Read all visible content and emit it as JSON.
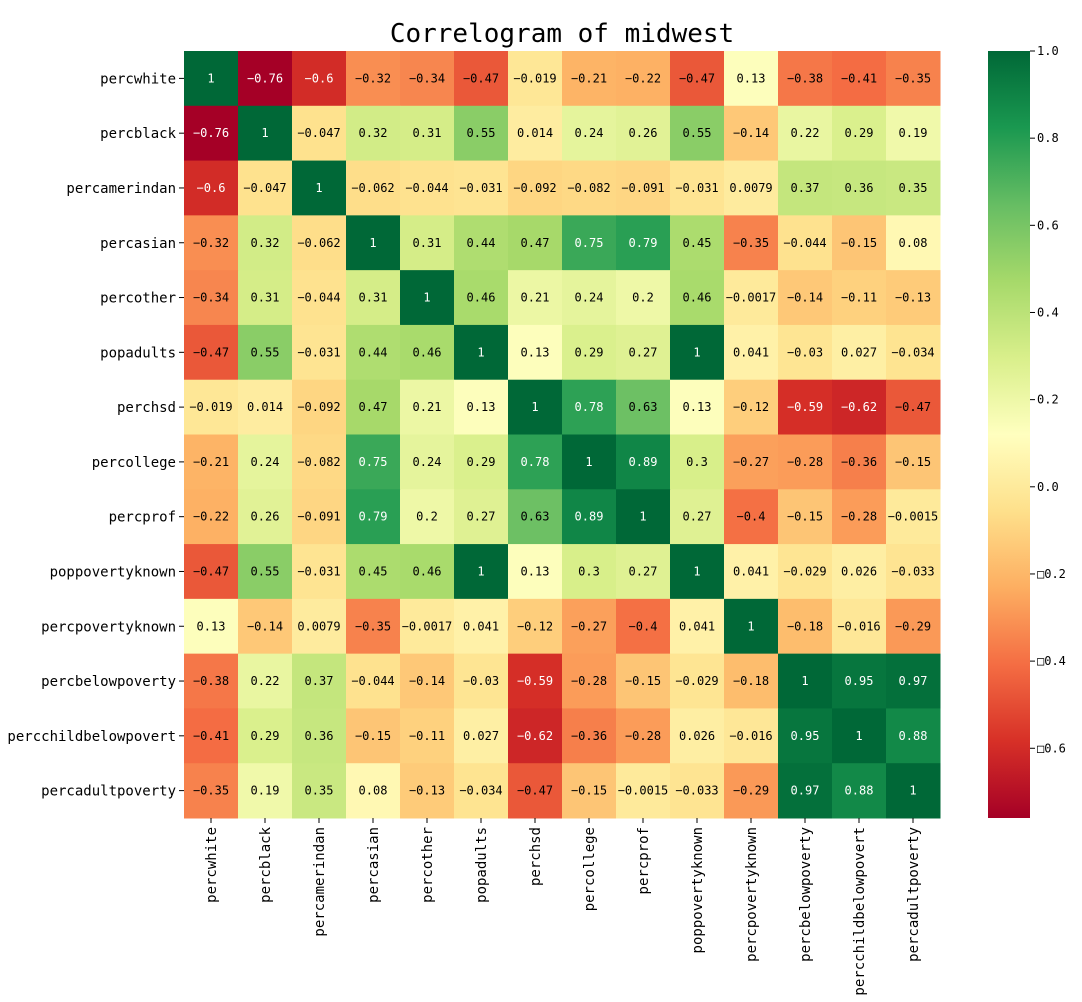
{
  "chart_data": {
    "type": "heatmap",
    "title": "Correlogram of midwest",
    "labels": [
      "percwhite",
      "percblack",
      "percamerindan",
      "percasian",
      "percother",
      "popadults",
      "perchsd",
      "percollege",
      "percprof",
      "poppovertyknown",
      "percpovertyknown",
      "percbelowpoverty",
      "percchildbelowpovert",
      "percadultpoverty"
    ],
    "values": [
      [
        1,
        -0.76,
        -0.6,
        -0.32,
        -0.34,
        -0.47,
        -0.019,
        -0.21,
        -0.22,
        -0.47,
        0.13,
        -0.38,
        -0.41,
        -0.35
      ],
      [
        -0.76,
        1,
        -0.047,
        0.32,
        0.31,
        0.55,
        0.014,
        0.24,
        0.26,
        0.55,
        -0.14,
        0.22,
        0.29,
        0.19
      ],
      [
        -0.6,
        -0.047,
        1,
        -0.062,
        -0.044,
        -0.031,
        -0.092,
        -0.082,
        -0.091,
        -0.031,
        0.0079,
        0.37,
        0.36,
        0.35
      ],
      [
        -0.32,
        0.32,
        -0.062,
        1,
        0.31,
        0.44,
        0.47,
        0.75,
        0.79,
        0.45,
        -0.35,
        -0.044,
        -0.15,
        0.08
      ],
      [
        -0.34,
        0.31,
        -0.044,
        0.31,
        1,
        0.46,
        0.21,
        0.24,
        0.2,
        0.46,
        -0.0017,
        -0.14,
        -0.11,
        -0.13
      ],
      [
        -0.47,
        0.55,
        -0.031,
        0.44,
        0.46,
        1,
        0.13,
        0.29,
        0.27,
        1,
        0.041,
        -0.03,
        0.027,
        -0.034
      ],
      [
        -0.019,
        0.014,
        -0.092,
        0.47,
        0.21,
        0.13,
        1,
        0.78,
        0.63,
        0.13,
        -0.12,
        -0.59,
        -0.62,
        -0.47
      ],
      [
        -0.21,
        0.24,
        -0.082,
        0.75,
        0.24,
        0.29,
        0.78,
        1,
        0.89,
        0.3,
        -0.27,
        -0.28,
        -0.36,
        -0.15
      ],
      [
        -0.22,
        0.26,
        -0.091,
        0.79,
        0.2,
        0.27,
        0.63,
        0.89,
        1,
        0.27,
        -0.4,
        -0.15,
        -0.28,
        -0.0015
      ],
      [
        -0.47,
        0.55,
        -0.031,
        0.45,
        0.46,
        1,
        0.13,
        0.3,
        0.27,
        1,
        0.041,
        -0.029,
        0.026,
        -0.033
      ],
      [
        0.13,
        -0.14,
        0.0079,
        -0.35,
        -0.0017,
        0.041,
        -0.12,
        -0.27,
        -0.4,
        0.041,
        1,
        -0.18,
        -0.016,
        -0.29
      ],
      [
        -0.38,
        0.22,
        0.37,
        -0.044,
        -0.14,
        -0.03,
        -0.59,
        -0.28,
        -0.15,
        -0.029,
        -0.18,
        1,
        0.95,
        0.97
      ],
      [
        -0.41,
        0.29,
        0.36,
        -0.15,
        -0.11,
        0.027,
        -0.62,
        -0.36,
        -0.28,
        0.026,
        -0.016,
        0.95,
        1,
        0.88
      ],
      [
        -0.35,
        0.19,
        0.35,
        0.08,
        -0.13,
        -0.034,
        -0.47,
        -0.15,
        -0.0015,
        -0.033,
        -0.29,
        0.97,
        0.88,
        1
      ]
    ],
    "value_range": [
      -0.76,
      1.0
    ],
    "colormap": "RdYlGn",
    "colorbar": {
      "ticks": [
        1.0,
        0.8,
        0.6,
        0.4,
        0.2,
        0.0,
        -0.2,
        -0.4,
        -0.6
      ],
      "tick_labels": [
        "1.0",
        "0.8",
        "0.6",
        "0.4",
        "0.2",
        "0.0",
        "□0.2",
        "□0.4",
        "□0.6"
      ]
    }
  }
}
